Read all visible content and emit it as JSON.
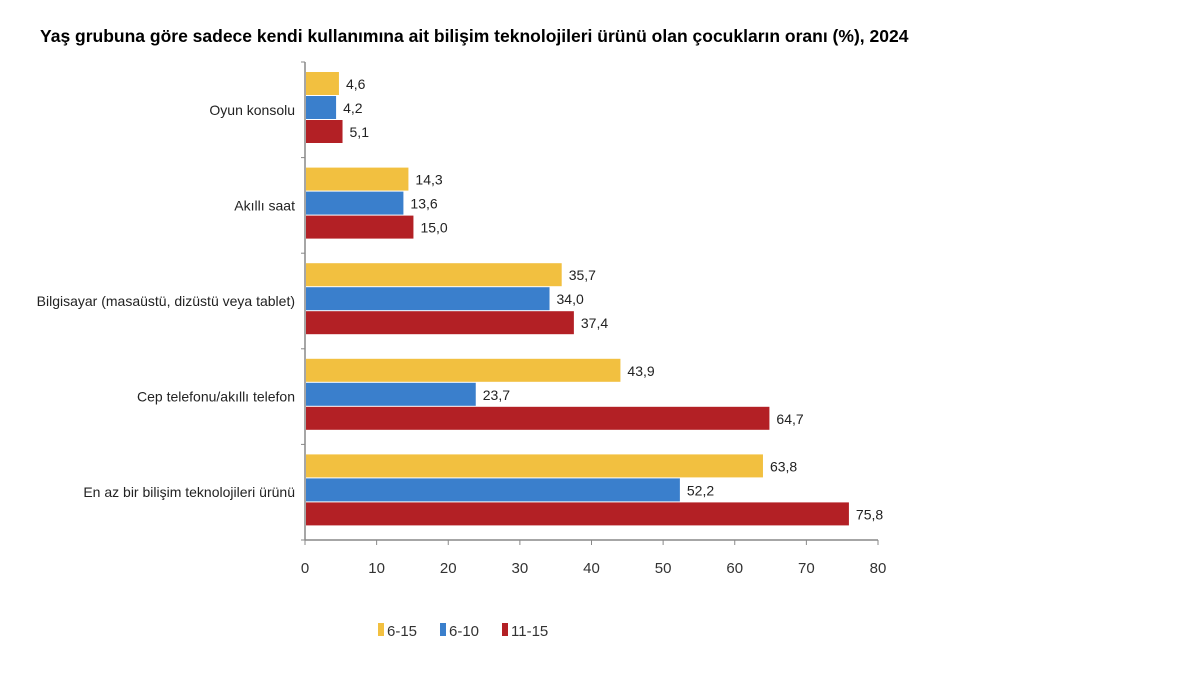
{
  "chart_data": {
    "type": "bar",
    "orientation": "horizontal",
    "title": "Yaş grubuna göre sadece kendi kullanımına ait bilişim teknolojileri ürünü olan çocukların oranı (%), 2024",
    "categories": [
      "Oyun konsolu",
      "Akıllı saat",
      "Bilgisayar (masaüstü, dizüstü veya tablet)",
      "Cep telefonu/akıllı telefon",
      "En az bir bilişim teknolojileri ürünü"
    ],
    "series": [
      {
        "name": "6-15",
        "color": "#f2c040",
        "values": [
          4.6,
          14.3,
          35.7,
          43.9,
          63.8
        ],
        "labels": [
          "4,6",
          "14,3",
          "35,7",
          "43,9",
          "63,8"
        ]
      },
      {
        "name": "6-10",
        "color": "#3a7fcc",
        "values": [
          4.2,
          13.6,
          34.0,
          23.7,
          52.2
        ],
        "labels": [
          "4,2",
          "13,6",
          "34,0",
          "23,7",
          "52,2"
        ]
      },
      {
        "name": "11-15",
        "color": "#b32025",
        "values": [
          5.1,
          15.0,
          37.4,
          64.7,
          75.8
        ],
        "labels": [
          "5,1",
          "15,0",
          "37,4",
          "64,7",
          "75,8"
        ]
      }
    ],
    "xlim": [
      0,
      80
    ],
    "xticks": [
      "0",
      "10",
      "20",
      "30",
      "40",
      "50",
      "60",
      "70",
      "80"
    ],
    "xlabel": "",
    "ylabel": "",
    "grid": false,
    "legend": "bottom"
  }
}
